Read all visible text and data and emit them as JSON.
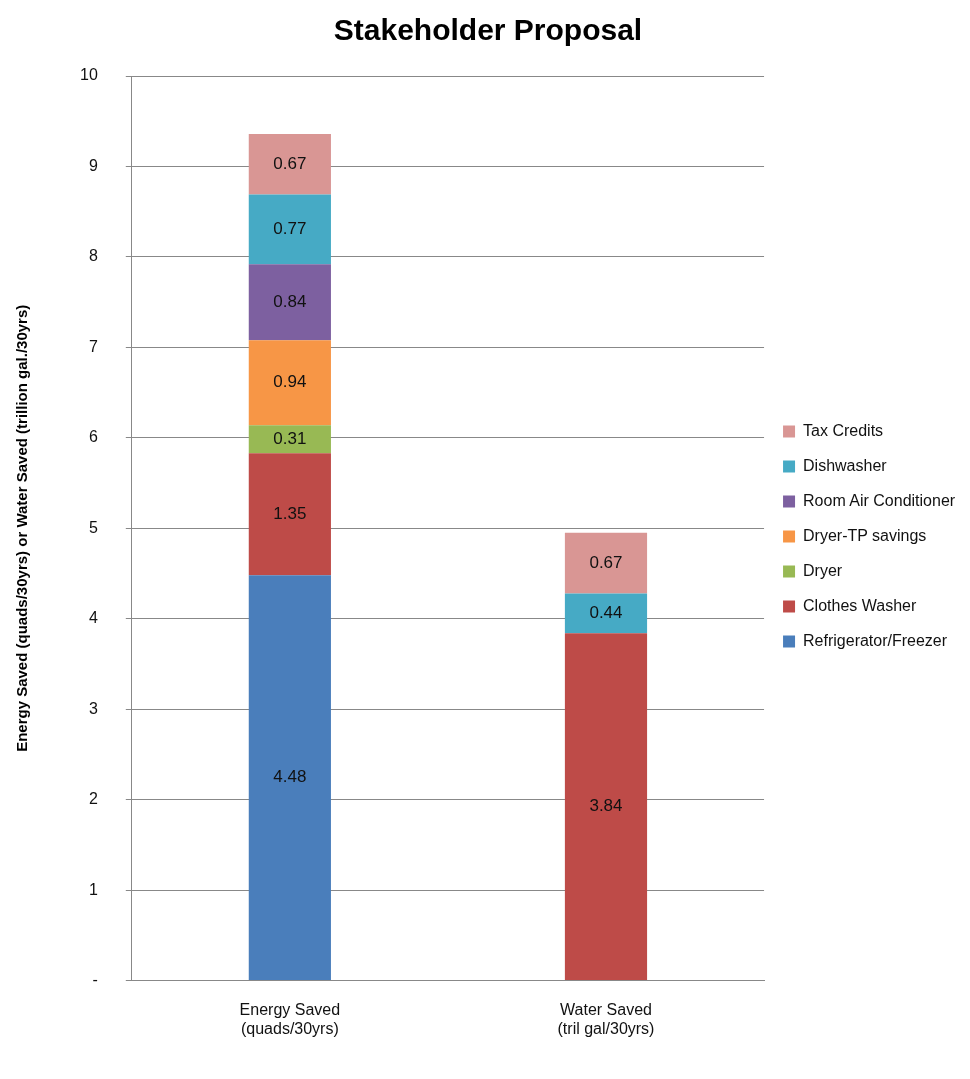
{
  "chart_data": {
    "type": "bar",
    "title": "Stakeholder Proposal",
    "ylabel": "Energy Saved (quads/30yrs) or Water Saved (trillion gal./30yrs)",
    "categories": [
      "Energy Saved\n(quads/30yrs)",
      "Water Saved\n(tril gal/30yrs)"
    ],
    "stacked": true,
    "data_labels": true,
    "grid": "y",
    "legend": "right",
    "ylim": [
      0,
      10
    ],
    "yticks": [
      {
        "value": 0,
        "label": "-"
      },
      1,
      2,
      3,
      4,
      5,
      6,
      7,
      8,
      9,
      10
    ],
    "series": [
      {
        "name": "Refrigerator/Freezer",
        "color": "#4a7ebb",
        "values": [
          4.48,
          null
        ]
      },
      {
        "name": "Clothes Washer",
        "color": "#be4b48",
        "values": [
          1.35,
          3.84
        ]
      },
      {
        "name": "Dryer",
        "color": "#98b954",
        "values": [
          0.31,
          null
        ]
      },
      {
        "name": "Dryer-TP savings",
        "color": "#f79646",
        "values": [
          0.94,
          null
        ]
      },
      {
        "name": "Room Air Conditioner",
        "color": "#7d60a0",
        "values": [
          0.84,
          null
        ]
      },
      {
        "name": "Dishwasher",
        "color": "#46aac5",
        "values": [
          0.77,
          0.44
        ]
      },
      {
        "name": "Tax Credits",
        "color": "#d99694",
        "values": [
          0.67,
          0.67
        ]
      }
    ]
  }
}
